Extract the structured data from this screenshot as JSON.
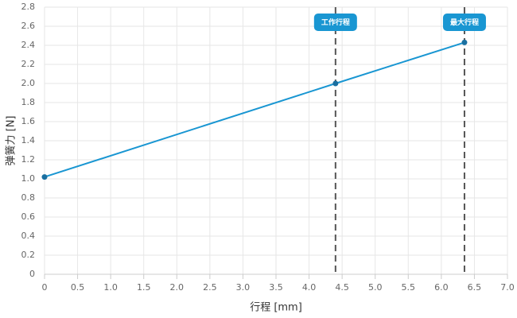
{
  "chart_data": {
    "type": "line",
    "x_label": "行程 [mm]",
    "y_label": "弹簧力 [N]",
    "x": [
      0,
      4.4,
      6.35
    ],
    "series": [
      {
        "color": "#1996d2",
        "values": [
          1.02,
          2.0,
          2.43
        ]
      }
    ],
    "annotations": [
      {
        "x": 4.4,
        "label": "工作行程"
      },
      {
        "x": 6.35,
        "label": "最大行程"
      }
    ],
    "xlim": [
      0,
      7
    ],
    "xticks": [
      0,
      0.5,
      {
        "value": 1,
        "label": "1.0"
      },
      1.5,
      {
        "value": 2,
        "label": "2.0"
      },
      2.5,
      {
        "value": 3,
        "label": "3.0"
      },
      3.5,
      {
        "value": 4,
        "label": "4.0"
      },
      4.5,
      {
        "value": 5,
        "label": "5.0"
      },
      5.5,
      {
        "value": 6,
        "label": "6.0"
      },
      6.5,
      {
        "value": 7,
        "label": "7.0"
      }
    ],
    "ylim": [
      0,
      2.8
    ],
    "yticks": [
      0,
      0.2,
      0.4,
      0.6,
      0.8,
      {
        "value": 1,
        "label": "1.0"
      },
      1.2,
      1.4,
      1.6,
      1.8,
      {
        "value": 2,
        "label": "2.0"
      },
      2.2,
      2.4,
      2.6,
      2.8
    ],
    "grid": true
  }
}
